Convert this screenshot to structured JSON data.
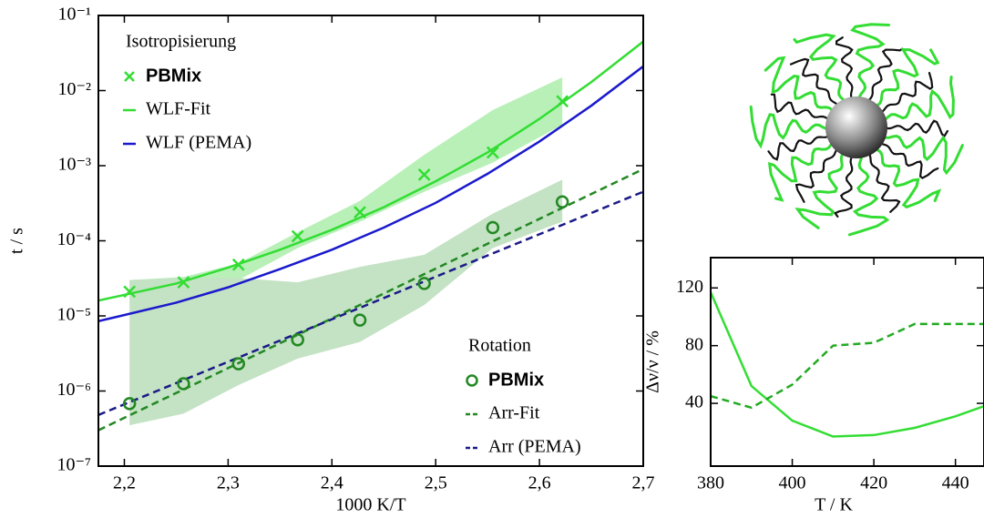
{
  "chart_data": [
    {
      "type": "line",
      "log_y": true,
      "x_label": "1000 K/T",
      "y_label": "t / s",
      "xlim": [
        2.175,
        2.7
      ],
      "ylim": [
        1e-07,
        0.1
      ],
      "xticks": [
        {
          "value": 2.2,
          "label": "2,2"
        },
        {
          "value": 2.3,
          "label": "2,3"
        },
        {
          "value": 2.4,
          "label": "2,4"
        },
        {
          "value": 2.5,
          "label": "2,5"
        },
        {
          "value": 2.6,
          "label": "2,6"
        },
        {
          "value": 2.7,
          "label": "2,7"
        }
      ],
      "yticks": [
        {
          "value": 1e-07,
          "label": "10⁻⁷"
        },
        {
          "value": 1e-06,
          "label": "10⁻⁶"
        },
        {
          "value": 1e-05,
          "label": "10⁻⁵"
        },
        {
          "value": 0.0001,
          "label": "10⁻⁴"
        },
        {
          "value": 0.001,
          "label": "10⁻³"
        },
        {
          "value": 0.01,
          "label": "10⁻²"
        },
        {
          "value": 0.1,
          "label": "10⁻¹"
        }
      ],
      "bands": [
        {
          "color": "#b8f0b8",
          "x": [
            2.205,
            2.257,
            2.31,
            2.367,
            2.427,
            2.489,
            2.555,
            2.622
          ],
          "lower": [
            1.5e-05,
            2.1e-05,
            3e-05,
            8e-05,
            0.00018,
            0.00045,
            0.0011,
            0.0035
          ],
          "upper": [
            3e-05,
            3.3e-05,
            5e-05,
            0.00013,
            0.00034,
            0.0014,
            0.0055,
            0.015
          ]
        },
        {
          "color": "#c4e2c4",
          "x": [
            2.205,
            2.257,
            2.31,
            2.367,
            2.427,
            2.489,
            2.555,
            2.622
          ],
          "lower": [
            3.5e-07,
            5e-07,
            1.2e-06,
            2.7e-06,
            4.5e-06,
            1.4e-05,
            8e-05,
            0.00018
          ],
          "upper": [
            3e-05,
            3.2e-05,
            3.2e-05,
            2.8e-05,
            4.5e-05,
            6.5e-05,
            0.00023,
            0.00065
          ]
        }
      ],
      "series_groups": [
        {
          "title": "Isotropisierung",
          "legend_loc": "upper left",
          "series": [
            {
              "name": "PBMix",
              "color": "#33dd33",
              "mode": "markers",
              "marker": "x",
              "x": [
                2.205,
                2.257,
                2.31,
                2.367,
                2.427,
                2.489,
                2.555,
                2.622
              ],
              "values": [
                2.1e-05,
                2.8e-05,
                4.8e-05,
                0.000115,
                0.00024,
                0.00076,
                0.0015,
                0.0072
              ]
            },
            {
              "name": "WLF-Fit",
              "color": "#33dd33",
              "mode": "line",
              "dash": false,
              "x": [
                2.175,
                2.25,
                2.3,
                2.35,
                2.4,
                2.45,
                2.5,
                2.55,
                2.6,
                2.65,
                2.7
              ],
              "values": [
                1.6e-05,
                2.7e-05,
                4.4e-05,
                7.6e-05,
                0.00014,
                0.00028,
                0.00062,
                0.0015,
                0.0042,
                0.013,
                0.045
              ]
            },
            {
              "name": "WLF (PEMA)",
              "color": "#1a1acc",
              "mode": "line",
              "dash": false,
              "x": [
                2.175,
                2.25,
                2.3,
                2.35,
                2.4,
                2.45,
                2.5,
                2.55,
                2.6,
                2.65,
                2.7
              ],
              "values": [
                8.5e-06,
                1.5e-05,
                2.4e-05,
                4.2e-05,
                7.6e-05,
                0.00015,
                0.00032,
                0.00078,
                0.0021,
                0.0063,
                0.021
              ]
            }
          ]
        },
        {
          "title": "Rotation",
          "legend_loc": "lower right",
          "series": [
            {
              "name": "PBMix",
              "color": "#228822",
              "mode": "markers",
              "marker": "o",
              "x": [
                2.205,
                2.257,
                2.31,
                2.367,
                2.427,
                2.489,
                2.555,
                2.622
              ],
              "values": [
                6.8e-07,
                1.25e-06,
                2.3e-06,
                4.8e-06,
                8.8e-06,
                2.7e-05,
                0.00015,
                0.00033
              ]
            },
            {
              "name": "Arr-Fit",
              "color": "#228822",
              "mode": "line",
              "dash": true,
              "x": [
                2.175,
                2.7
              ],
              "values": [
                3e-07,
                0.0009
              ]
            },
            {
              "name": "Arr (PEMA)",
              "color": "#1a1a88",
              "mode": "line",
              "dash": true,
              "x": [
                2.175,
                2.7
              ],
              "values": [
                4.8e-07,
                0.00045
              ]
            }
          ]
        }
      ]
    },
    {
      "type": "line",
      "log_y": false,
      "x_label": "T / K",
      "y_label": "Δν/ν / %",
      "xlim": [
        380,
        447
      ],
      "ylim": [
        -3.5,
        141
      ],
      "xticks": [
        380,
        400,
        420,
        440
      ],
      "yticks": [
        40,
        80,
        120
      ],
      "series_groups": [
        {
          "series": [
            {
              "color": "#33dd33",
              "mode": "line",
              "dash": false,
              "x": [
                380,
                390,
                400,
                410,
                420,
                430,
                440,
                447
              ],
              "values": [
                117,
                52,
                28,
                17,
                18,
                23,
                31,
                38
              ]
            },
            {
              "color": "#22aa22",
              "mode": "line",
              "dash": true,
              "x": [
                380,
                390,
                400,
                410,
                420,
                430,
                440,
                447
              ],
              "values": [
                45,
                37,
                53,
                80,
                82,
                95,
                95,
                95
              ]
            }
          ]
        }
      ]
    }
  ]
}
